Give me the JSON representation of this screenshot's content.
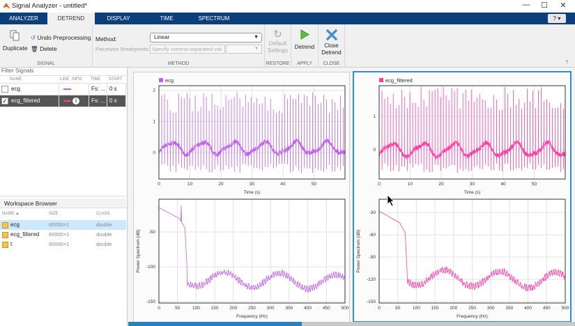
{
  "window": {
    "title": "Signal Analyzer - untitled*",
    "minimize": "—",
    "maximize": "☐",
    "close": "✕"
  },
  "tabs": [
    {
      "label": "ANALYZER"
    },
    {
      "label": "DETREND"
    },
    {
      "label": "DISPLAY"
    },
    {
      "label": "TIME"
    },
    {
      "label": "SPECTRUM"
    }
  ],
  "help": {
    "label": "? ▾"
  },
  "ribbon": {
    "signal": {
      "duplicate": "Duplicate",
      "undo": "Undo Preprocessing",
      "delete": "Delete",
      "section": "SIGNAL"
    },
    "method": {
      "method_label": "Method:",
      "method_value": "Linear",
      "breakpoints_label": "Piecewise Breakpoints:",
      "breakpoints_placeholder": "Specify comma-separated valı",
      "section": "METHOD"
    },
    "restore": {
      "default1": "Default",
      "default2": "Settings",
      "section": "RESTORE"
    },
    "apply": {
      "detrend": "Detrend",
      "section": "APPLY"
    },
    "close": {
      "close1": "Close",
      "close2": "Detrend",
      "section": "CLOSE"
    }
  },
  "signals": {
    "filter_placeholder": "Filter Signals",
    "headers": [
      "NAME",
      "LINE",
      "INFO",
      "TIME",
      "START"
    ],
    "rows": [
      {
        "name": "ecg",
        "time": "Fs: ...",
        "start": "0 s",
        "checked": false,
        "color": "#c060f0"
      },
      {
        "name": "ecg_filtered",
        "time": "Fs: ...",
        "start": "0 s",
        "checked": true,
        "color": "#ff3ea5"
      }
    ]
  },
  "workspace": {
    "title": "Workspace Browser",
    "headers": [
      "NAME ▲",
      "SIZE",
      "CLASS"
    ],
    "rows": [
      {
        "name": "ecg",
        "size": "60000×1",
        "class": "double"
      },
      {
        "name": "ecg_filtered",
        "size": "60000×1",
        "class": "double"
      },
      {
        "name": "t",
        "size": "60000×1",
        "class": "double"
      }
    ]
  },
  "chart_data": [
    {
      "type": "line",
      "legend": "ecg",
      "color": "#c060f0",
      "xlabel": "Time (s)",
      "ylabel": "",
      "xlim": [
        0,
        60
      ],
      "ylim": [
        -0.85,
        2.15
      ],
      "xticks": [
        0,
        10,
        20,
        30,
        40,
        50
      ],
      "yticks": [
        0,
        1,
        2
      ],
      "baseline_offset": 0.15,
      "grid": true
    },
    {
      "type": "line",
      "xlabel": "Frequency (Hz)",
      "ylabel": "Power Spectrum (dB)",
      "color": "#c060f0",
      "xlim": [
        0,
        500
      ],
      "ylim": [
        -152,
        -3
      ],
      "xticks": [
        0,
        50,
        100,
        150,
        200,
        250,
        300,
        350,
        400,
        450,
        500
      ],
      "yticks": [
        -50,
        -100,
        -150
      ],
      "grid": true
    },
    {
      "type": "line",
      "legend": "ecg_filtered",
      "color": "#ff3ea5",
      "xlabel": "Time (s)",
      "ylabel": "",
      "xlim": [
        0,
        60
      ],
      "ylim": [
        -0.88,
        1.92
      ],
      "xticks": [
        0,
        10,
        20,
        30,
        40,
        50
      ],
      "yticks": [
        0,
        1
      ],
      "baseline_offset": 0,
      "grid": true
    },
    {
      "type": "line",
      "xlabel": "Frequency (Hz)",
      "ylabel": "Power Spectrum (dB)",
      "color": "#ff3ea5",
      "xlim": [
        0,
        500
      ],
      "ylim": [
        -152,
        -12
      ],
      "xticks": [
        0,
        50,
        100,
        150,
        200,
        250,
        300,
        350,
        400,
        450,
        500
      ],
      "yticks": [
        -30,
        -60,
        -90,
        -120,
        -150
      ],
      "grid": true
    }
  ]
}
